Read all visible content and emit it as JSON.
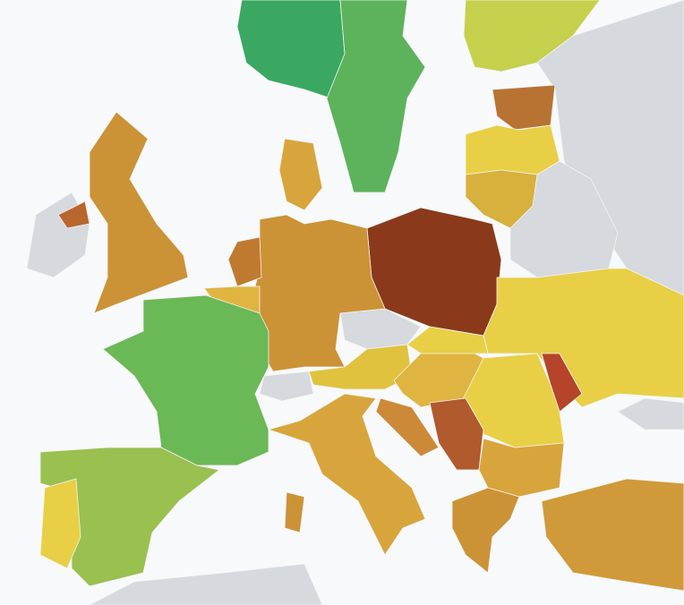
{
  "map": {
    "regions": [
      {
        "color": "#3aa860"
      },
      {
        "color": "#5cb35c"
      },
      {
        "color": "#c5d04d"
      },
      {
        "color": "#b87333"
      },
      {
        "color": "#e8cf45"
      },
      {
        "color": "#d8b03e"
      },
      {
        "color": "#8a3a1a"
      },
      {
        "color": "#e8cf45"
      },
      {
        "color": "#b5442a"
      },
      {
        "color": "#cc9236"
      },
      {
        "color": "#d8a53c"
      },
      {
        "color": "#c07a30"
      },
      {
        "color": "#e0b440"
      },
      {
        "color": "#6bb857"
      },
      {
        "color": "#cc9236"
      },
      {
        "color": "#b8662e"
      },
      {
        "color": "#e0c23e"
      },
      {
        "color": "#e0b440"
      },
      {
        "color": "#e8cf45"
      },
      {
        "color": "#e8cf45"
      },
      {
        "color": "#d8a53c"
      },
      {
        "color": "#cc8a38"
      },
      {
        "color": "#b05a2e"
      },
      {
        "color": "#d8a53c"
      },
      {
        "color": "#cc9236"
      },
      {
        "color": "#d09a3a"
      },
      {
        "color": "#9ac050"
      },
      {
        "color": "#e8cf45"
      },
      {
        "color": "#cc9236"
      }
    ]
  }
}
